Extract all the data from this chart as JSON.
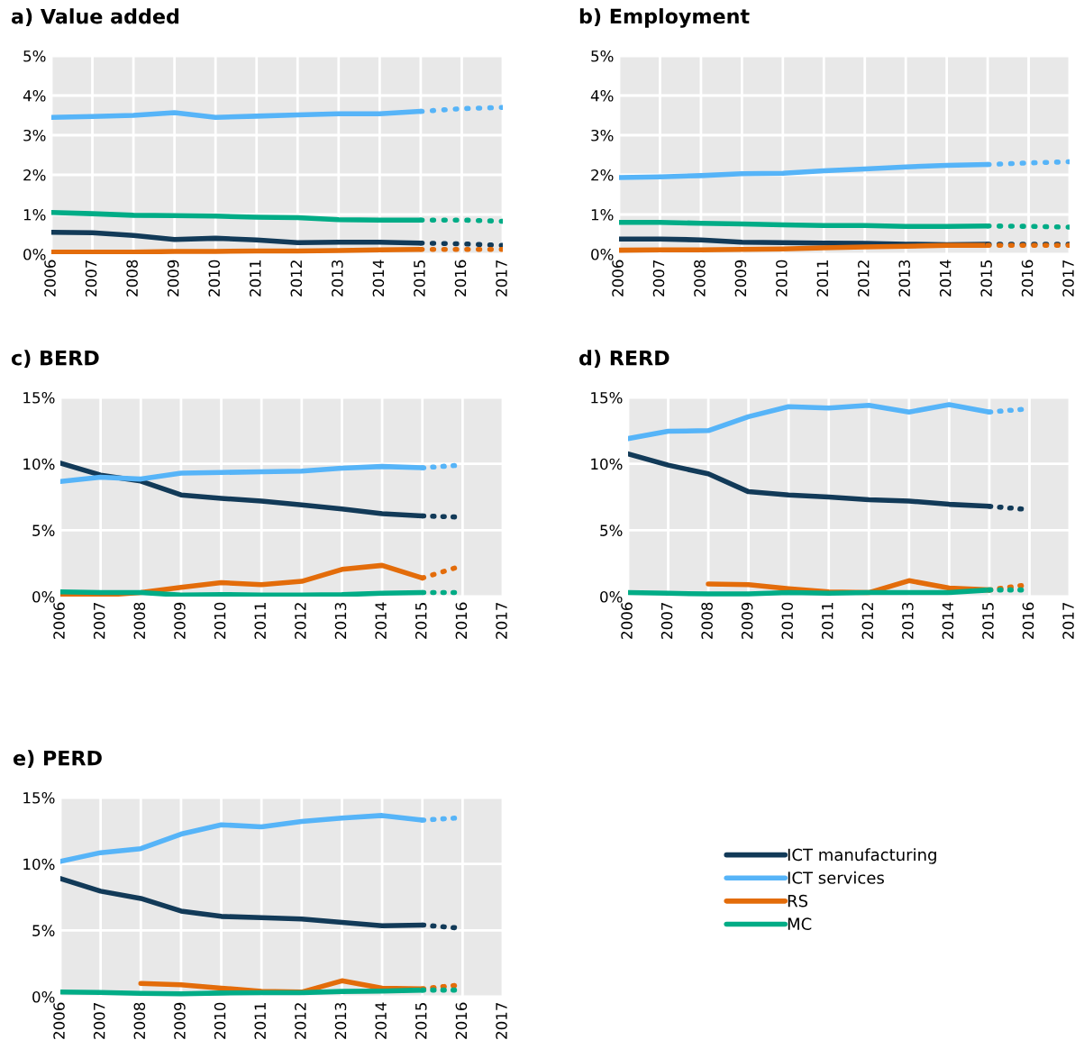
{
  "chart_data": [
    {
      "type": "line",
      "title": "a) Value added",
      "x": [
        2006,
        2007,
        2008,
        2009,
        2010,
        2011,
        2012,
        2013,
        2014,
        2015
      ],
      "xlim": [
        2006,
        2017
      ],
      "xticks": [
        2006,
        2007,
        2008,
        2009,
        2010,
        2011,
        2012,
        2013,
        2014,
        2015,
        2016,
        2017
      ],
      "ylim": [
        0,
        5
      ],
      "yticks": [
        {
          "value": 0,
          "label": "0%"
        },
        {
          "value": 1,
          "label": "1%"
        },
        {
          "value": 2,
          "label": "2%"
        },
        {
          "value": 3,
          "label": "3%"
        },
        {
          "value": 4,
          "label": "4%"
        },
        {
          "value": 5,
          "label": "5%"
        }
      ],
      "grid": true,
      "line_style": "solid",
      "series": [
        {
          "color": "#123a58",
          "values": [
            0.55,
            0.54,
            0.47,
            0.37,
            0.4,
            0.36,
            0.29,
            0.3,
            0.3,
            0.28
          ]
        },
        {
          "color": "#56b4f8",
          "values": [
            3.45,
            3.47,
            3.5,
            3.57,
            3.45,
            3.48,
            3.51,
            3.54,
            3.54,
            3.6
          ]
        },
        {
          "color": "#e36c0a",
          "values": [
            0.05,
            0.05,
            0.05,
            0.07,
            0.07,
            0.08,
            0.08,
            0.09,
            0.11,
            0.12
          ]
        },
        {
          "color": "#00ac86",
          "values": [
            1.05,
            1.02,
            0.98,
            0.97,
            0.96,
            0.93,
            0.92,
            0.87,
            0.86,
            0.86
          ]
        },
        {
          "color": "#123a58",
          "line_style": "dotted",
          "x": [
            2015,
            2016,
            2017
          ],
          "values": [
            0.28,
            0.26,
            0.22
          ]
        },
        {
          "color": "#56b4f8",
          "line_style": "dotted",
          "x": [
            2015,
            2016,
            2017
          ],
          "values": [
            3.6,
            3.67,
            3.7
          ]
        },
        {
          "color": "#e36c0a",
          "line_style": "dotted",
          "x": [
            2015,
            2016,
            2017
          ],
          "values": [
            0.12,
            0.12,
            0.12
          ]
        },
        {
          "color": "#00ac86",
          "line_style": "dotted",
          "x": [
            2015,
            2016,
            2017
          ],
          "values": [
            0.86,
            0.86,
            0.83
          ]
        }
      ]
    },
    {
      "type": "line",
      "title": "b) Employment",
      "x": [
        2006,
        2007,
        2008,
        2009,
        2010,
        2011,
        2012,
        2013,
        2014,
        2015
      ],
      "xlim": [
        2006,
        2017
      ],
      "xticks": [
        2006,
        2007,
        2008,
        2009,
        2010,
        2011,
        2012,
        2013,
        2014,
        2015,
        2016,
        2017
      ],
      "ylim": [
        0,
        5
      ],
      "yticks": [
        {
          "value": 0,
          "label": "0%"
        },
        {
          "value": 1,
          "label": "1%"
        },
        {
          "value": 2,
          "label": "2%"
        },
        {
          "value": 3,
          "label": "3%"
        },
        {
          "value": 4,
          "label": "4%"
        },
        {
          "value": 5,
          "label": "5%"
        }
      ],
      "grid": true,
      "line_style": "solid",
      "series": [
        {
          "color": "#123a58",
          "values": [
            0.38,
            0.38,
            0.36,
            0.3,
            0.29,
            0.28,
            0.27,
            0.25,
            0.24,
            0.25
          ]
        },
        {
          "color": "#56b4f8",
          "values": [
            1.93,
            1.95,
            1.98,
            2.03,
            2.04,
            2.1,
            2.15,
            2.2,
            2.24,
            2.26
          ]
        },
        {
          "color": "#e36c0a",
          "values": [
            0.1,
            0.11,
            0.11,
            0.12,
            0.13,
            0.16,
            0.18,
            0.2,
            0.22,
            0.22
          ]
        },
        {
          "color": "#00ac86",
          "values": [
            0.8,
            0.8,
            0.78,
            0.76,
            0.74,
            0.72,
            0.72,
            0.7,
            0.7,
            0.71
          ]
        },
        {
          "color": "#123a58",
          "line_style": "dotted",
          "x": [
            2015,
            2016,
            2017
          ],
          "values": [
            0.25,
            0.25,
            0.25
          ]
        },
        {
          "color": "#56b4f8",
          "line_style": "dotted",
          "x": [
            2015,
            2016,
            2017
          ],
          "values": [
            2.26,
            2.3,
            2.33
          ]
        },
        {
          "color": "#e36c0a",
          "line_style": "dotted",
          "x": [
            2015,
            2016,
            2017
          ],
          "values": [
            0.22,
            0.22,
            0.22
          ]
        },
        {
          "color": "#00ac86",
          "line_style": "dotted",
          "x": [
            2015,
            2016,
            2017
          ],
          "values": [
            0.71,
            0.7,
            0.68
          ]
        }
      ]
    },
    {
      "type": "line",
      "title": "c) BERD",
      "x": [
        2006,
        2007,
        2008,
        2009,
        2010,
        2011,
        2012,
        2013,
        2014,
        2015
      ],
      "xlim": [
        2006,
        2017
      ],
      "xticks": [
        2006,
        2007,
        2008,
        2009,
        2010,
        2011,
        2012,
        2013,
        2014,
        2015,
        2016,
        2017
      ],
      "ylim": [
        0,
        15
      ],
      "yticks": [
        {
          "value": 0,
          "label": "0%"
        },
        {
          "value": 5,
          "label": "5%"
        },
        {
          "value": 10,
          "label": "10%"
        },
        {
          "value": 15,
          "label": "15%"
        }
      ],
      "grid": true,
      "line_style": "solid",
      "series": [
        {
          "color": "#123a58",
          "values": [
            10.05,
            9.15,
            8.7,
            7.66,
            7.4,
            7.2,
            6.9,
            6.6,
            6.25,
            6.08
          ]
        },
        {
          "color": "#56b4f8",
          "values": [
            8.67,
            9.0,
            8.85,
            9.3,
            9.35,
            9.4,
            9.45,
            9.67,
            9.8,
            9.7
          ]
        },
        {
          "color": "#e36c0a",
          "values": [
            0.1,
            0.1,
            0.3,
            0.7,
            1.05,
            0.9,
            1.15,
            2.05,
            2.35,
            1.4
          ]
        },
        {
          "color": "#00ac86",
          "values": [
            0.35,
            0.3,
            0.3,
            0.12,
            0.15,
            0.12,
            0.12,
            0.15,
            0.25,
            0.3
          ]
        },
        {
          "color": "#123a58",
          "line_style": "dotted",
          "x": [
            2015,
            2015.8
          ],
          "values": [
            6.08,
            6.0
          ]
        },
        {
          "color": "#56b4f8",
          "line_style": "dotted",
          "x": [
            2015,
            2015.8
          ],
          "values": [
            9.7,
            9.87
          ]
        },
        {
          "color": "#e36c0a",
          "line_style": "dotted",
          "x": [
            2015,
            2015.8
          ],
          "values": [
            1.4,
            2.15
          ]
        },
        {
          "color": "#00ac86",
          "line_style": "dotted",
          "x": [
            2015,
            2015.8
          ],
          "values": [
            0.3,
            0.3
          ]
        }
      ]
    },
    {
      "type": "line",
      "title": "d) RERD",
      "x": [
        2006,
        2007,
        2008,
        2009,
        2010,
        2011,
        2012,
        2013,
        2014,
        2015
      ],
      "xlim": [
        2006,
        2017
      ],
      "xticks": [
        2006,
        2007,
        2008,
        2009,
        2010,
        2011,
        2012,
        2013,
        2014,
        2015,
        2016,
        2017
      ],
      "ylim": [
        0,
        15
      ],
      "yticks": [
        {
          "value": 0,
          "label": "0%"
        },
        {
          "value": 5,
          "label": "5%"
        },
        {
          "value": 10,
          "label": "10%"
        },
        {
          "value": 15,
          "label": "15%"
        }
      ],
      "grid": true,
      "line_style": "solid",
      "series": [
        {
          "color": "#123a58",
          "values": [
            10.75,
            9.9,
            9.25,
            7.9,
            7.65,
            7.5,
            7.3,
            7.2,
            6.95,
            6.8
          ]
        },
        {
          "color": "#56b4f8",
          "values": [
            11.9,
            12.45,
            12.5,
            13.55,
            14.3,
            14.2,
            14.4,
            13.9,
            14.45,
            13.9
          ]
        },
        {
          "color": "#e36c0a",
          "values": [
            null,
            null,
            0.95,
            0.9,
            0.6,
            0.35,
            0.3,
            1.2,
            0.65,
            0.5
          ]
        },
        {
          "color": "#00ac86",
          "values": [
            0.3,
            0.25,
            0.2,
            0.2,
            0.3,
            0.25,
            0.3,
            0.3,
            0.3,
            0.5
          ]
        },
        {
          "color": "#123a58",
          "line_style": "dotted",
          "x": [
            2015,
            2015.8
          ],
          "values": [
            6.8,
            6.6
          ]
        },
        {
          "color": "#56b4f8",
          "line_style": "dotted",
          "x": [
            2015,
            2015.8
          ],
          "values": [
            13.9,
            14.1
          ]
        },
        {
          "color": "#e36c0a",
          "line_style": "dotted",
          "x": [
            2015,
            2015.8
          ],
          "values": [
            0.5,
            0.83
          ]
        },
        {
          "color": "#00ac86",
          "line_style": "dotted",
          "x": [
            2015,
            2015.8
          ],
          "values": [
            0.5,
            0.5
          ]
        }
      ]
    },
    {
      "type": "line",
      "title": "e) PERD",
      "x": [
        2006,
        2007,
        2008,
        2009,
        2010,
        2011,
        2012,
        2013,
        2014,
        2015
      ],
      "xlim": [
        2006,
        2017
      ],
      "xticks": [
        2006,
        2007,
        2008,
        2009,
        2010,
        2011,
        2012,
        2013,
        2014,
        2015,
        2016,
        2017
      ],
      "ylim": [
        0,
        15
      ],
      "yticks": [
        {
          "value": 0,
          "label": "0%"
        },
        {
          "value": 5,
          "label": "5%"
        },
        {
          "value": 10,
          "label": "10%"
        },
        {
          "value": 15,
          "label": "15%"
        }
      ],
      "grid": true,
      "line_style": "solid",
      "legend": "right",
      "series": [
        {
          "name": "ICT manufacturing",
          "color": "#123a58",
          "values": [
            8.9,
            7.95,
            7.4,
            6.45,
            6.05,
            5.95,
            5.85,
            5.6,
            5.35,
            5.4
          ]
        },
        {
          "name": "ICT services",
          "color": "#56b4f8",
          "values": [
            10.2,
            10.85,
            11.15,
            12.25,
            12.95,
            12.8,
            13.2,
            13.45,
            13.65,
            13.3
          ]
        },
        {
          "name": "RS",
          "color": "#e36c0a",
          "values": [
            null,
            null,
            1.0,
            0.9,
            0.65,
            0.4,
            0.35,
            1.2,
            0.65,
            0.6
          ]
        },
        {
          "name": "MC",
          "color": "#00ac86",
          "values": [
            0.35,
            0.32,
            0.25,
            0.22,
            0.28,
            0.3,
            0.3,
            0.4,
            0.42,
            0.5
          ]
        },
        {
          "color": "#123a58",
          "line_style": "dotted",
          "x": [
            2015,
            2015.8
          ],
          "values": [
            5.4,
            5.2
          ]
        },
        {
          "color": "#56b4f8",
          "line_style": "dotted",
          "x": [
            2015,
            2015.8
          ],
          "values": [
            13.3,
            13.45
          ]
        },
        {
          "color": "#e36c0a",
          "line_style": "dotted",
          "x": [
            2015,
            2015.8
          ],
          "values": [
            0.6,
            0.85
          ]
        },
        {
          "color": "#00ac86",
          "line_style": "dotted",
          "x": [
            2015,
            2015.8
          ],
          "values": [
            0.5,
            0.5
          ]
        }
      ]
    }
  ]
}
